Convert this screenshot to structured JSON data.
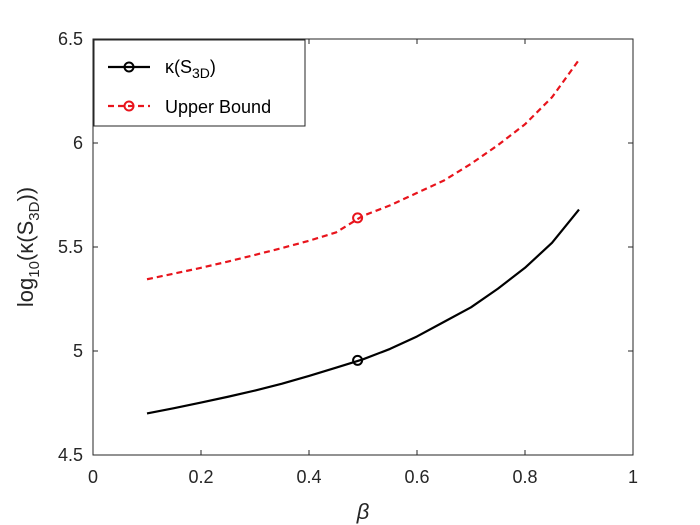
{
  "chart_data": {
    "type": "line",
    "xlabel": "β",
    "ylabel": {
      "pre": "log",
      "sub1": "10",
      "mid": "(κ(S",
      "sub2": "3D",
      "post": "))"
    },
    "xlim": [
      0,
      1
    ],
    "ylim": [
      4.5,
      6.5
    ],
    "x_ticks": [
      "0",
      "0.2",
      "0.4",
      "0.6",
      "0.8",
      "1"
    ],
    "y_ticks": [
      "4.5",
      "5",
      "5.5",
      "6",
      "6.5"
    ],
    "grid": false,
    "legend_position": "top-left",
    "series": [
      {
        "name": "κ(S3D)",
        "label": {
          "main": "κ(S",
          "sub": "3D",
          "tail": ")"
        },
        "color": "#000000",
        "line_style": "solid",
        "marker_x": 0.49,
        "marker_y": 4.955,
        "x": [
          0.1,
          0.15,
          0.2,
          0.25,
          0.3,
          0.35,
          0.4,
          0.45,
          0.5,
          0.55,
          0.6,
          0.65,
          0.7,
          0.75,
          0.8,
          0.85,
          0.9
        ],
        "y": [
          4.7,
          4.725,
          4.752,
          4.78,
          4.81,
          4.843,
          4.88,
          4.92,
          4.96,
          5.01,
          5.07,
          5.14,
          5.21,
          5.3,
          5.4,
          5.52,
          5.68
        ]
      },
      {
        "name": "Upper Bound",
        "label": {
          "main": "Upper Bound",
          "sub": "",
          "tail": ""
        },
        "color": "#e8141c",
        "line_style": "dashed",
        "marker_x": 0.49,
        "marker_y": 5.64,
        "x": [
          0.1,
          0.15,
          0.2,
          0.25,
          0.3,
          0.35,
          0.4,
          0.45,
          0.5,
          0.55,
          0.6,
          0.65,
          0.7,
          0.75,
          0.8,
          0.85,
          0.9
        ],
        "y": [
          5.345,
          5.372,
          5.4,
          5.43,
          5.462,
          5.495,
          5.53,
          5.57,
          5.65,
          5.7,
          5.76,
          5.82,
          5.9,
          5.99,
          6.09,
          6.22,
          6.4
        ]
      }
    ]
  }
}
